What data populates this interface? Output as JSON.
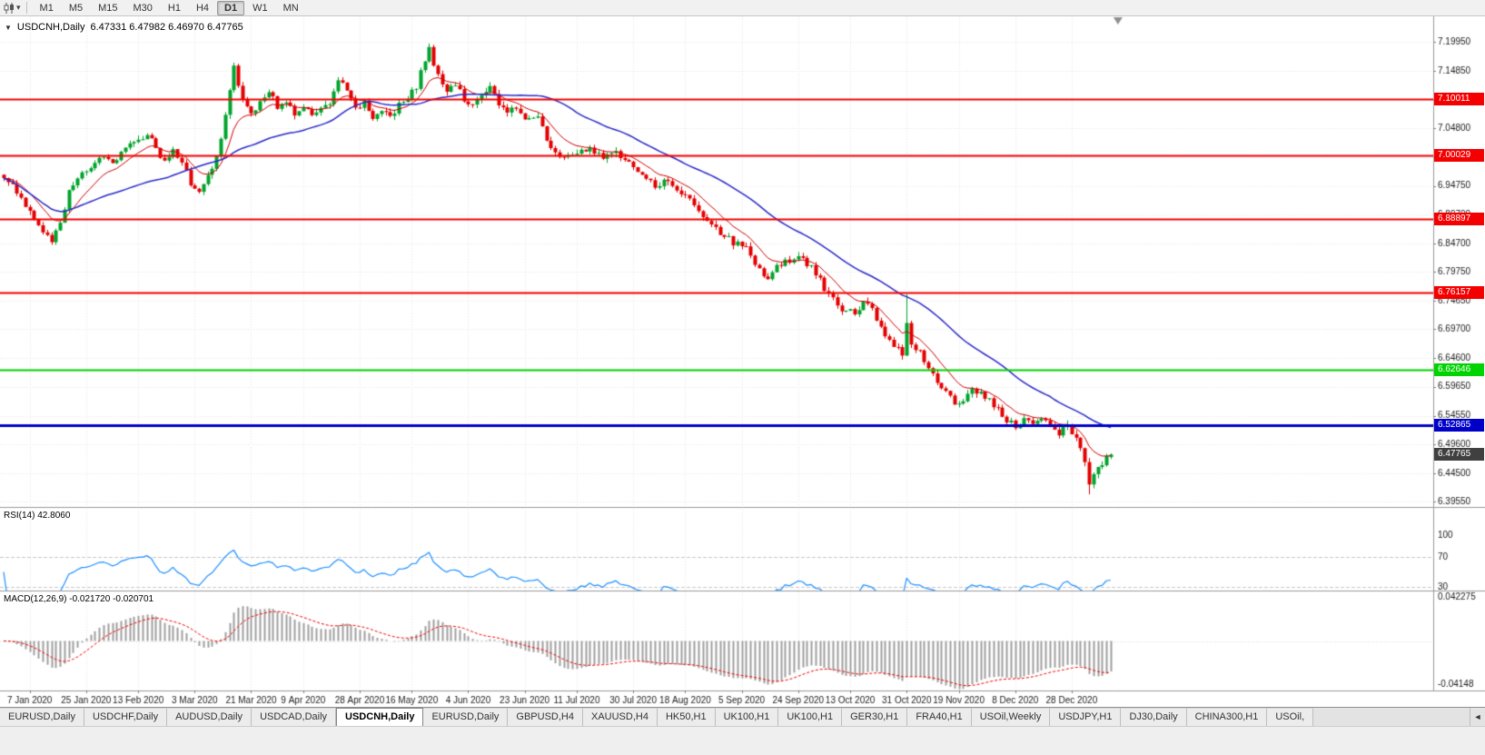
{
  "toolbar": {
    "timeframes": [
      "M1",
      "M5",
      "M15",
      "M30",
      "H1",
      "H4",
      "D1",
      "W1",
      "MN"
    ],
    "active_timeframe": "D1",
    "chart_type_icon": "candlestick-icon",
    "dropdown_icon": "▾"
  },
  "main_chart": {
    "collapse_icon": "▼",
    "symbol_title": "USDCNH,Daily",
    "ohlc_text": "6.47331 6.47982 6.46970 6.47765"
  },
  "price_axis_labels": [
    "7.19950",
    "7.14850",
    "7.09800",
    "7.04800",
    "6.99750",
    "6.94750",
    "6.89700",
    "6.84700",
    "6.79750",
    "6.74650",
    "6.69700",
    "6.64600",
    "6.59650",
    "6.54550",
    "6.49600",
    "6.44500",
    "6.39550"
  ],
  "hlines": [
    {
      "value": 7.10011,
      "label": "7.10011",
      "color": "#f40000",
      "width": 2
    },
    {
      "value": 7.00029,
      "label": "7.00029",
      "color": "#f40000",
      "width": 2
    },
    {
      "value": 6.88897,
      "label": "6.88897",
      "color": "#f40000",
      "width": 2
    },
    {
      "value": 6.76157,
      "label": "6.76157",
      "color": "#f40000",
      "width": 2
    },
    {
      "value": 6.62646,
      "label": "6.62646",
      "color": "#00d400",
      "width": 2
    },
    {
      "value": 6.52865,
      "label": "6.52865",
      "color": "#0000c8",
      "width": 3
    }
  ],
  "current_price": {
    "value": 6.47765,
    "label": "6.47765",
    "bg": "#404040"
  },
  "rsi_panel": {
    "label": "RSI(14) 42.8060",
    "axis_labels": [
      {
        "v": 100,
        "t": "100"
      },
      {
        "v": 70,
        "t": "70"
      },
      {
        "v": 30,
        "t": "30"
      }
    ],
    "levels": [
      70,
      30
    ],
    "range": [
      25,
      137
    ],
    "line_color": "#1e90ff"
  },
  "macd_panel": {
    "label": "MACD(12,26,9) -0.021720 -0.020701",
    "axis_labels": [
      {
        "v": 0.042275,
        "t": "0.042275"
      },
      {
        "v": -0.04148,
        "t": "-0.04148"
      }
    ],
    "range": [
      -0.0475,
      0.0475
    ],
    "hist_color": "#9f9f9f",
    "signal_color": "#f40000"
  },
  "date_axis": {
    "ticks": [
      {
        "i": 6,
        "label": "7 Jan 2020"
      },
      {
        "i": 19,
        "label": "25 Jan 2020"
      },
      {
        "i": 31,
        "label": "13 Feb 2020"
      },
      {
        "i": 44,
        "label": "3 Mar 2020"
      },
      {
        "i": 57,
        "label": "21 Mar 2020"
      },
      {
        "i": 69,
        "label": "9 Apr 2020"
      },
      {
        "i": 82,
        "label": "28 Apr 2020"
      },
      {
        "i": 94,
        "label": "16 May 2020"
      },
      {
        "i": 107,
        "label": "4 Jun 2020"
      },
      {
        "i": 120,
        "label": "23 Jun 2020"
      },
      {
        "i": 132,
        "label": "11 Jul 2020"
      },
      {
        "i": 145,
        "label": "30 Jul 2020"
      },
      {
        "i": 157,
        "label": "18 Aug 2020"
      },
      {
        "i": 170,
        "label": "5 Sep 2020"
      },
      {
        "i": 183,
        "label": "24 Sep 2020"
      },
      {
        "i": 195,
        "label": "13 Oct 2020"
      },
      {
        "i": 208,
        "label": "31 Oct 2020"
      },
      {
        "i": 220,
        "label": "19 Nov 2020"
      },
      {
        "i": 233,
        "label": "8 Dec 2020"
      },
      {
        "i": 246,
        "label": "28 Dec 2020"
      }
    ]
  },
  "tabs": {
    "items": [
      "EURUSD,Daily",
      "USDCHF,Daily",
      "AUDUSD,Daily",
      "USDCAD,Daily",
      "USDCNH,Daily",
      "EURUSD,Daily",
      "GBPUSD,H4",
      "XAUUSD,H4",
      "HK50,H1",
      "UK100,H1",
      "UK100,H1",
      "GER30,H1",
      "FRA40,H1",
      "USOil,Weekly",
      "USDJPY,H1",
      "DJ30,Daily",
      "CHINA300,H1",
      "USOil,"
    ],
    "active_index": 4,
    "scroll_left_icon": "◄"
  },
  "chart_data": {
    "type": "candlestick",
    "symbol": "USDCNH",
    "period": "Daily",
    "num_candles": 256,
    "price_range": [
      6.386,
      7.244
    ],
    "up_color": "#00a42c",
    "down_color": "#e40000",
    "ma_fast": {
      "period": 10,
      "type": "ema",
      "color": "#d10000"
    },
    "ma_slow": {
      "period": 34,
      "type": "sma",
      "color": "#2a2ac8"
    },
    "anchors": [
      [
        0,
        6.962
      ],
      [
        3,
        6.938
      ],
      [
        6,
        6.905
      ],
      [
        9,
        6.872
      ],
      [
        11,
        6.852
      ],
      [
        13,
        6.882
      ],
      [
        15,
        6.935
      ],
      [
        17,
        6.962
      ],
      [
        19,
        6.972
      ],
      [
        21,
        6.988
      ],
      [
        23,
        6.998
      ],
      [
        25,
        6.988
      ],
      [
        27,
        7.008
      ],
      [
        29,
        7.018
      ],
      [
        31,
        7.028
      ],
      [
        33,
        7.042
      ],
      [
        35,
        7.012
      ],
      [
        37,
        6.988
      ],
      [
        39,
        7.008
      ],
      [
        41,
        6.992
      ],
      [
        43,
        6.952
      ],
      [
        45,
        6.932
      ],
      [
        47,
        6.962
      ],
      [
        49,
        6.998
      ],
      [
        51,
        7.072
      ],
      [
        53,
        7.152
      ],
      [
        55,
        7.098
      ],
      [
        57,
        7.072
      ],
      [
        59,
        7.092
      ],
      [
        61,
        7.112
      ],
      [
        63,
        7.086
      ],
      [
        65,
        7.096
      ],
      [
        67,
        7.076
      ],
      [
        69,
        7.088
      ],
      [
        71,
        7.066
      ],
      [
        73,
        7.08
      ],
      [
        75,
        7.094
      ],
      [
        77,
        7.128
      ],
      [
        79,
        7.118
      ],
      [
        81,
        7.082
      ],
      [
        83,
        7.092
      ],
      [
        85,
        7.068
      ],
      [
        87,
        7.078
      ],
      [
        89,
        7.068
      ],
      [
        91,
        7.088
      ],
      [
        93,
        7.102
      ],
      [
        95,
        7.122
      ],
      [
        97,
        7.168
      ],
      [
        98,
        7.185
      ],
      [
        100,
        7.138
      ],
      [
        102,
        7.115
      ],
      [
        104,
        7.125
      ],
      [
        106,
        7.098
      ],
      [
        108,
        7.088
      ],
      [
        110,
        7.104
      ],
      [
        112,
        7.118
      ],
      [
        114,
        7.092
      ],
      [
        116,
        7.076
      ],
      [
        118,
        7.086
      ],
      [
        120,
        7.066
      ],
      [
        123,
        7.074
      ],
      [
        126,
        7.008
      ],
      [
        129,
        6.998
      ],
      [
        132,
        7.006
      ],
      [
        135,
        7.016
      ],
      [
        138,
        6.996
      ],
      [
        141,
        7.006
      ],
      [
        144,
        6.986
      ],
      [
        147,
        6.966
      ],
      [
        150,
        6.946
      ],
      [
        153,
        6.956
      ],
      [
        156,
        6.932
      ],
      [
        159,
        6.916
      ],
      [
        162,
        6.882
      ],
      [
        165,
        6.866
      ],
      [
        168,
        6.848
      ],
      [
        171,
        6.842
      ],
      [
        174,
        6.802
      ],
      [
        176,
        6.788
      ],
      [
        179,
        6.812
      ],
      [
        182,
        6.822
      ],
      [
        184,
        6.816
      ],
      [
        187,
        6.796
      ],
      [
        190,
        6.756
      ],
      [
        193,
        6.732
      ],
      [
        196,
        6.726
      ],
      [
        199,
        6.746
      ],
      [
        202,
        6.696
      ],
      [
        205,
        6.668
      ],
      [
        207,
        6.656
      ],
      [
        208,
        6.702
      ],
      [
        209,
        6.668
      ],
      [
        211,
        6.656
      ],
      [
        213,
        6.626
      ],
      [
        215,
        6.606
      ],
      [
        217,
        6.586
      ],
      [
        219,
        6.566
      ],
      [
        221,
        6.576
      ],
      [
        223,
        6.596
      ],
      [
        225,
        6.582
      ],
      [
        227,
        6.572
      ],
      [
        229,
        6.556
      ],
      [
        231,
        6.536
      ],
      [
        233,
        6.528
      ],
      [
        235,
        6.542
      ],
      [
        237,
        6.533
      ],
      [
        239,
        6.546
      ],
      [
        241,
        6.526
      ],
      [
        243,
        6.516
      ],
      [
        245,
        6.528
      ],
      [
        247,
        6.506
      ],
      [
        249,
        6.468
      ],
      [
        250,
        6.428
      ],
      [
        251,
        6.446
      ],
      [
        252,
        6.462
      ],
      [
        253,
        6.455
      ],
      [
        254,
        6.47
      ],
      [
        255,
        6.47765
      ]
    ],
    "wick_overrides": [
      [
        11,
        null,
        6.8443
      ],
      [
        53,
        7.1632,
        null
      ],
      [
        98,
        7.1965,
        null
      ],
      [
        208,
        6.758,
        null
      ],
      [
        250,
        null,
        6.408
      ]
    ],
    "last_candle": {
      "o": 6.47331,
      "h": 6.47982,
      "l": 6.4697,
      "c": 6.47765
    }
  }
}
